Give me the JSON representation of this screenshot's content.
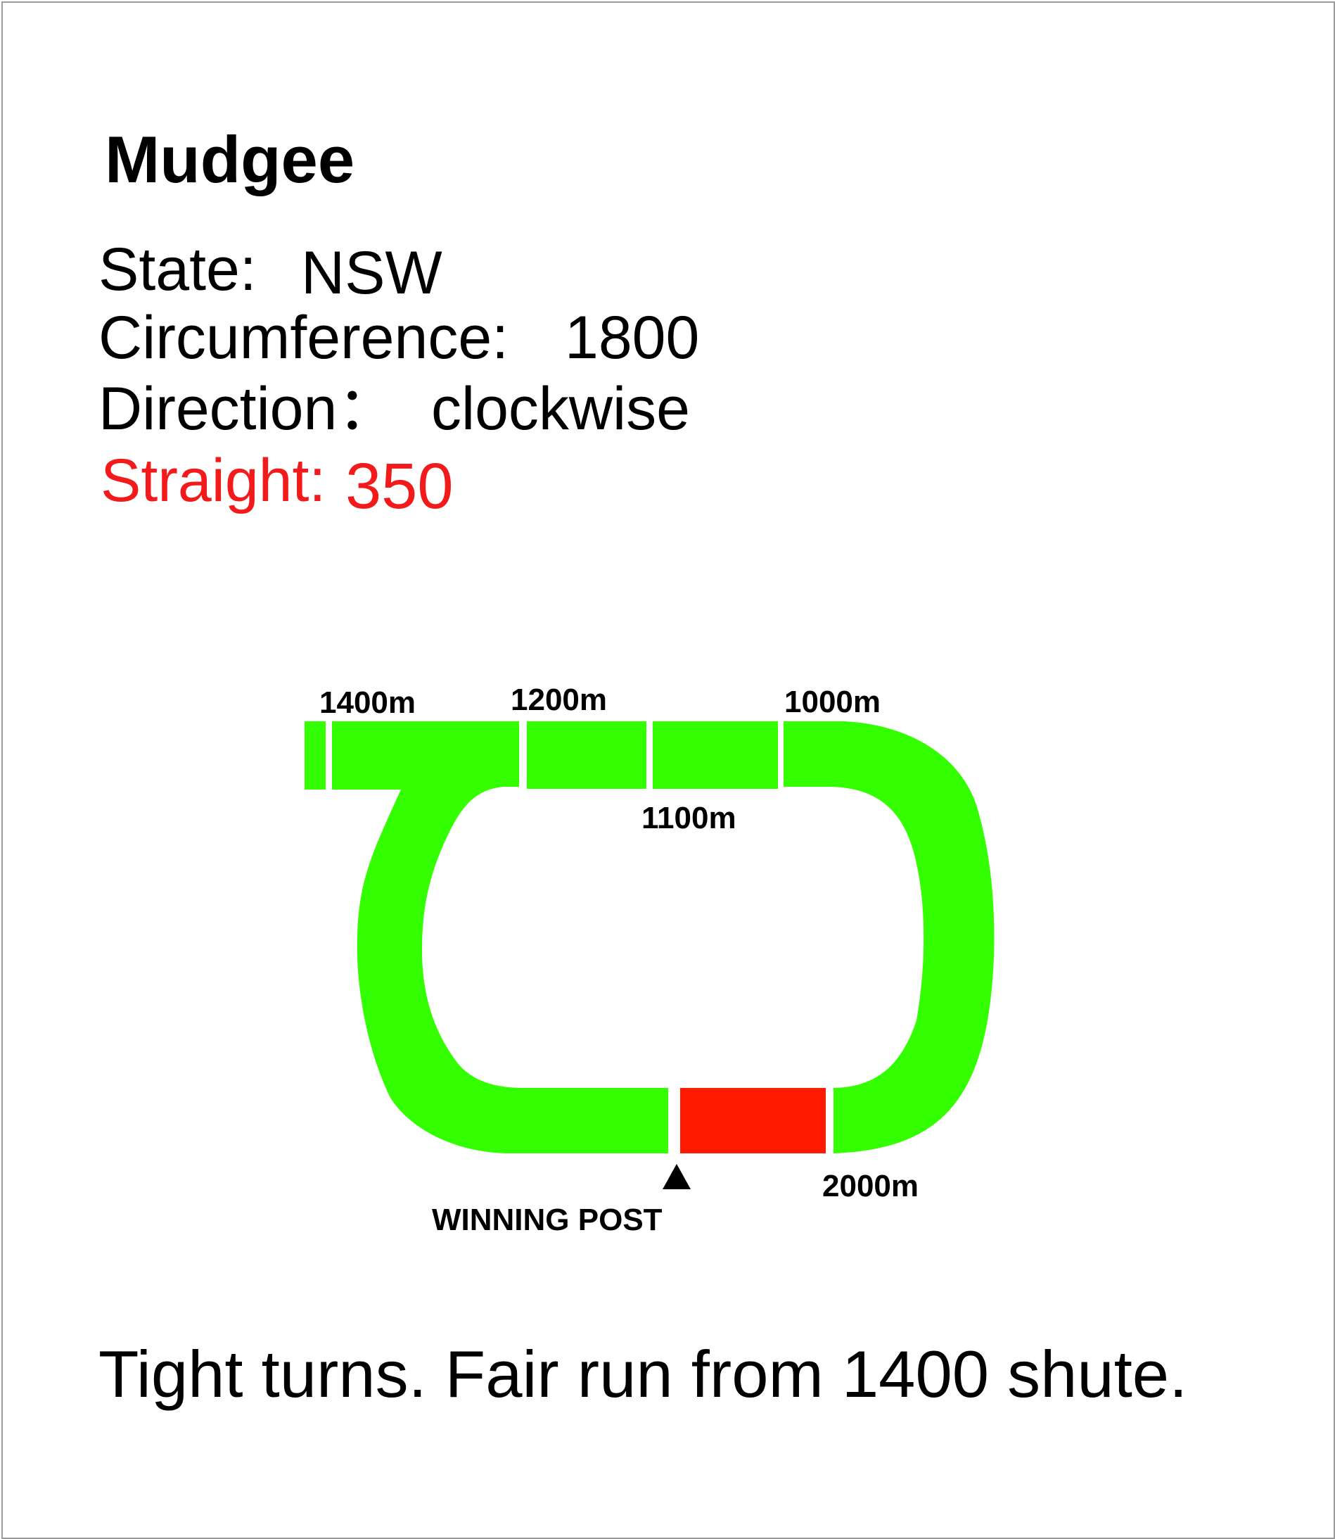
{
  "title": "Mudgee",
  "details": {
    "state_label": "State:",
    "state_value": "NSW",
    "circumference_label": "Circumference:",
    "circumference_value": "1800",
    "direction_label": "Direction：",
    "direction_value": "clockwise",
    "straight_label": "Straight:",
    "straight_value": "350"
  },
  "track": {
    "distance_markers": [
      "1400m",
      "1200m",
      "1000m",
      "1100m",
      "2000m"
    ],
    "winning_post_label": "WINNING POST",
    "colors": {
      "track": "#33ff00",
      "straight": "#ff1a00",
      "text": "#000000",
      "highlight": "#f21a1a"
    }
  },
  "note": "Tight turns. Fair run from 1400 shute."
}
